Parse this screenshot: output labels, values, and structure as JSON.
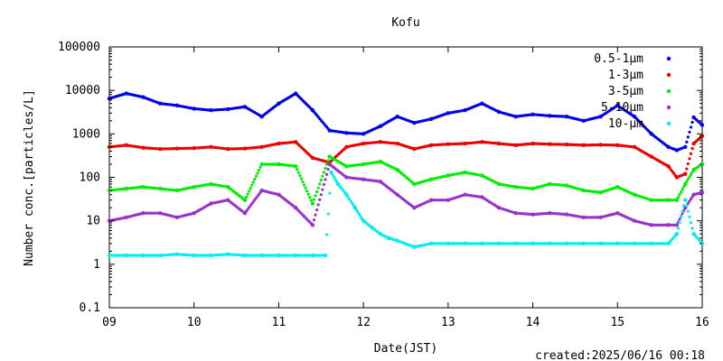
{
  "chart_data": {
    "type": "scatter",
    "title": "Kofu",
    "xlabel": "Date(JST)",
    "ylabel": "Number conc.[particles/L]",
    "created": "created:2025/06/16 00:18",
    "x_scale": "linear",
    "y_scale": "log",
    "xlim": [
      9,
      16
    ],
    "ylim": [
      0.1,
      100000
    ],
    "x_ticks": [
      "09",
      "10",
      "11",
      "12",
      "13",
      "14",
      "15",
      "16"
    ],
    "y_ticks": [
      "0.1",
      "1",
      "10",
      "100",
      "1000",
      "10000",
      "100000"
    ],
    "legend_position": "top-right",
    "series": [
      {
        "name": "0.5-1μm",
        "color": "#0000ee",
        "x": [
          9.0,
          9.2,
          9.4,
          9.6,
          9.8,
          10.0,
          10.2,
          10.4,
          10.6,
          10.8,
          11.0,
          11.2,
          11.4,
          11.6,
          11.8,
          12.0,
          12.2,
          12.4,
          12.6,
          12.8,
          13.0,
          13.2,
          13.4,
          13.6,
          13.8,
          14.0,
          14.2,
          14.4,
          14.6,
          14.8,
          15.0,
          15.2,
          15.4,
          15.6,
          15.7,
          15.8,
          15.9,
          16.0
        ],
        "y": [
          6500,
          8500,
          7000,
          5000,
          4500,
          3800,
          3500,
          3700,
          4200,
          2500,
          5000,
          8500,
          3500,
          1200,
          1050,
          1000,
          1500,
          2500,
          1800,
          2200,
          3000,
          3500,
          5000,
          3200,
          2500,
          2800,
          2600,
          2500,
          2000,
          2500,
          4500,
          2500,
          1000,
          500,
          420,
          500,
          2400,
          1600
        ]
      },
      {
        "name": "1-3μm",
        "color": "#ee0000",
        "x": [
          9.0,
          9.2,
          9.4,
          9.6,
          9.8,
          10.0,
          10.2,
          10.4,
          10.6,
          10.8,
          11.0,
          11.2,
          11.4,
          11.6,
          11.8,
          12.0,
          12.2,
          12.4,
          12.6,
          12.8,
          13.0,
          13.2,
          13.4,
          13.6,
          13.8,
          14.0,
          14.2,
          14.4,
          14.6,
          14.8,
          15.0,
          15.2,
          15.4,
          15.6,
          15.7,
          15.8,
          15.9,
          16.0
        ],
        "y": [
          500,
          550,
          480,
          450,
          460,
          470,
          500,
          450,
          460,
          500,
          600,
          650,
          280,
          220,
          500,
          600,
          650,
          600,
          450,
          550,
          580,
          600,
          650,
          600,
          550,
          600,
          580,
          570,
          550,
          560,
          550,
          500,
          300,
          180,
          100,
          120,
          600,
          900
        ]
      },
      {
        "name": "3-5μm",
        "color": "#00ee00",
        "x": [
          9.0,
          9.2,
          9.4,
          9.6,
          9.8,
          10.0,
          10.2,
          10.4,
          10.6,
          10.8,
          11.0,
          11.2,
          11.4,
          11.6,
          11.8,
          12.0,
          12.2,
          12.4,
          12.6,
          12.8,
          13.0,
          13.2,
          13.4,
          13.6,
          13.8,
          14.0,
          14.2,
          14.4,
          14.6,
          14.8,
          15.0,
          15.2,
          15.4,
          15.6,
          15.7,
          15.8,
          15.9,
          16.0
        ],
        "y": [
          50,
          55,
          60,
          55,
          50,
          60,
          70,
          60,
          30,
          200,
          200,
          180,
          25,
          300,
          180,
          200,
          230,
          150,
          70,
          90,
          110,
          130,
          110,
          70,
          60,
          55,
          70,
          65,
          50,
          45,
          60,
          40,
          30,
          30,
          30,
          70,
          150,
          200
        ]
      },
      {
        "name": "5-10μm",
        "color": "#9933cc",
        "x": [
          9.0,
          9.2,
          9.4,
          9.6,
          9.8,
          10.0,
          10.2,
          10.4,
          10.6,
          10.8,
          11.0,
          11.2,
          11.4,
          11.6,
          11.8,
          12.0,
          12.2,
          12.4,
          12.6,
          12.8,
          13.0,
          13.2,
          13.4,
          13.6,
          13.8,
          14.0,
          14.2,
          14.4,
          14.6,
          14.8,
          15.0,
          15.2,
          15.4,
          15.6,
          15.7,
          15.8,
          15.9,
          16.0
        ],
        "y": [
          10,
          12,
          15,
          15,
          12,
          15,
          25,
          30,
          15,
          50,
          40,
          20,
          8,
          200,
          100,
          90,
          80,
          40,
          20,
          30,
          30,
          40,
          35,
          20,
          15,
          14,
          15,
          14,
          12,
          12,
          15,
          10,
          8,
          8,
          8,
          20,
          40,
          45
        ]
      },
      {
        "name": "10-μm",
        "color": "#00eeee",
        "x": [
          9.0,
          9.2,
          9.4,
          9.6,
          9.8,
          10.0,
          10.2,
          10.4,
          10.6,
          10.8,
          11.0,
          11.2,
          11.4,
          11.55,
          11.62,
          11.7,
          11.8,
          11.9,
          12.0,
          12.1,
          12.2,
          12.3,
          12.4,
          12.6,
          12.8,
          13.0,
          13.2,
          13.4,
          13.6,
          13.8,
          14.0,
          14.2,
          14.4,
          14.6,
          14.8,
          15.0,
          15.2,
          15.4,
          15.6,
          15.7,
          15.8,
          15.9,
          16.0
        ],
        "y": [
          1.6,
          1.6,
          1.6,
          1.6,
          1.7,
          1.6,
          1.6,
          1.7,
          1.6,
          1.6,
          1.6,
          1.6,
          1.6,
          1.6,
          130,
          70,
          40,
          20,
          10,
          7,
          5,
          4,
          3.5,
          2.5,
          3,
          3,
          3,
          3,
          3,
          3,
          3,
          3,
          3,
          3,
          3,
          3,
          3,
          3,
          3,
          5,
          30,
          5,
          3
        ]
      }
    ]
  }
}
